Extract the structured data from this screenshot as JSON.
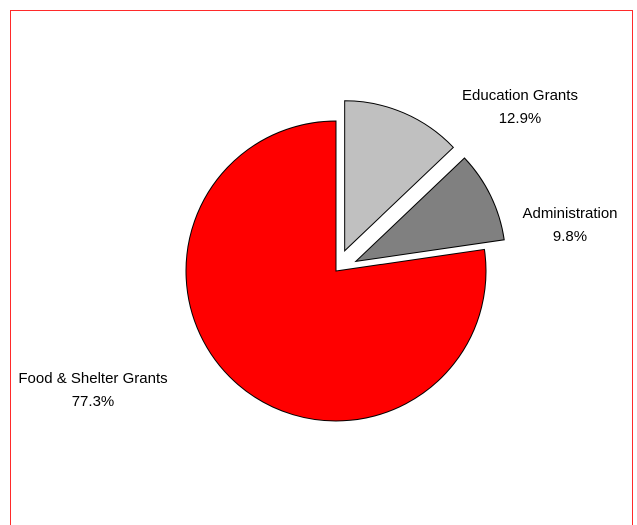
{
  "chart_data": {
    "type": "pie",
    "title": "",
    "exploded": true,
    "start_angle_deg": 0,
    "direction": "clockwise-from-top",
    "slices": [
      {
        "label": "Education Grants",
        "percent_label": "12.9%",
        "value": 12.9,
        "color": "#c0c0c0",
        "exploded": true
      },
      {
        "label": "Administration",
        "percent_label": "9.8%",
        "value": 9.8,
        "color": "#808080",
        "exploded": true
      },
      {
        "label": "Food & Shelter Grants",
        "percent_label": "77.3%",
        "value": 77.3,
        "color": "#ff0000",
        "exploded": false
      }
    ],
    "border_color": "#ff2a2a",
    "slice_outline_color": "#000000"
  }
}
